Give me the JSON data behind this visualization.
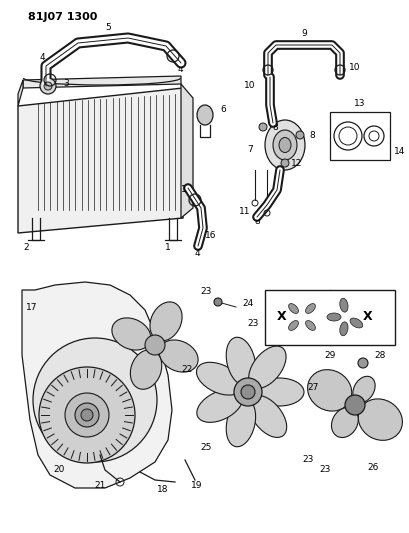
{
  "title": "81J07 1300",
  "bg_color": "#ffffff",
  "line_color": "#1a1a1a",
  "title_fontsize": 8,
  "label_fontsize": 6.5,
  "fig_width": 4.1,
  "fig_height": 5.33,
  "dpi": 100
}
